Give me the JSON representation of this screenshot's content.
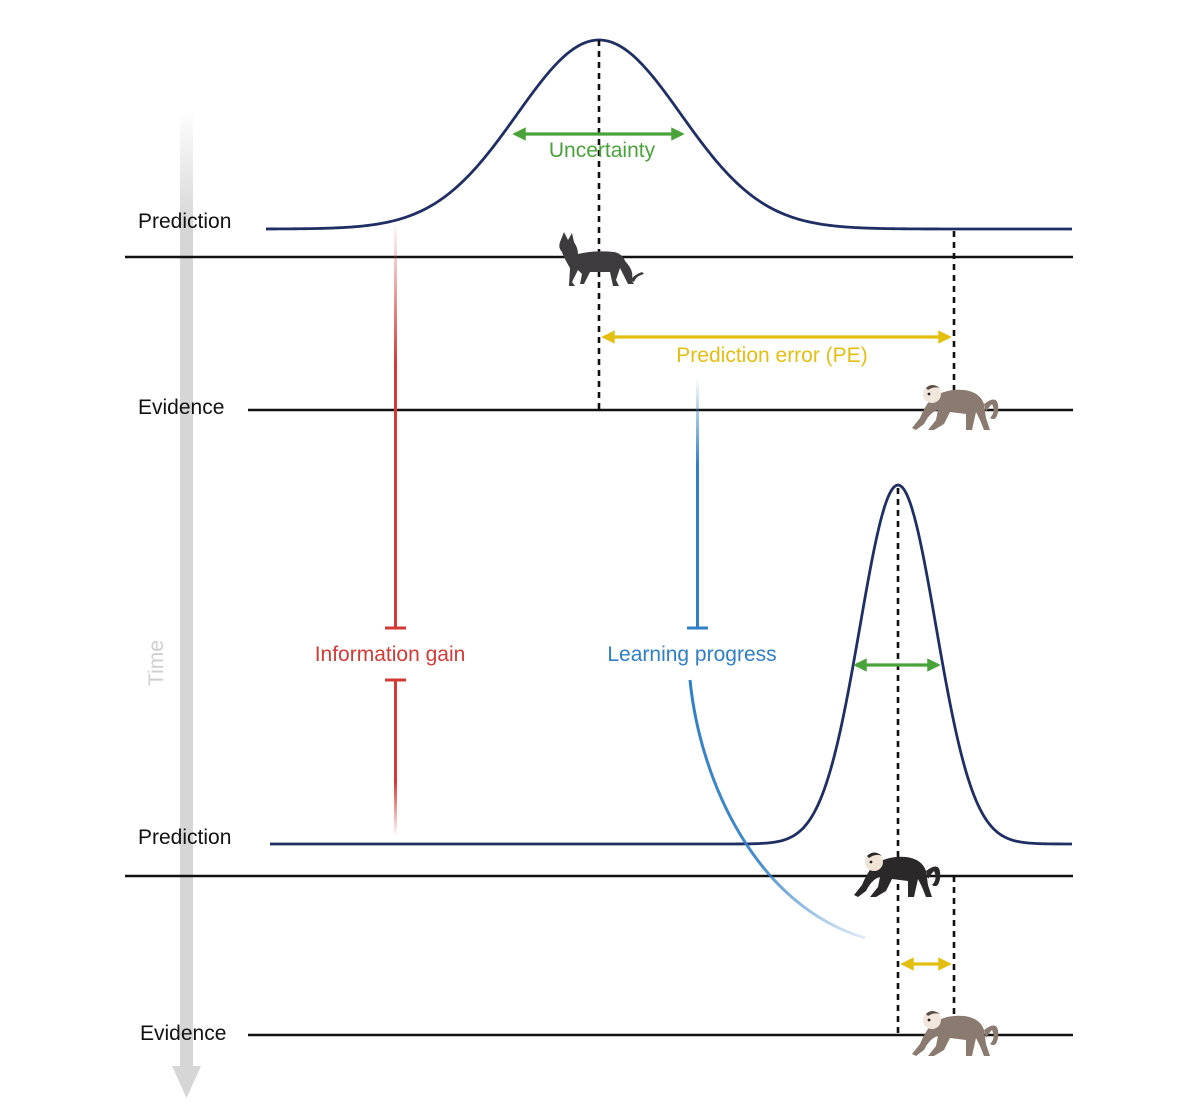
{
  "labels": {
    "prediction_top": "Prediction",
    "evidence_top": "Evidence",
    "prediction_bottom": "Prediction",
    "evidence_bottom": "Evidence",
    "uncertainty": "Uncertainty",
    "prediction_error": "Prediction error (PE)",
    "information_gain": "Information gain",
    "learning_progress": "Learning progress",
    "time": "Time"
  },
  "colors": {
    "curve": "#1f2f63",
    "axis": "#111111",
    "uncertainty": "#4aa33a",
    "prediction_error": "#e3bf12",
    "information_gain": "#d23a35",
    "learning_progress": "#2f7fc4",
    "time_arrow": "#d6d6d6",
    "cat": "#3d3b3e",
    "monkey_brown": "#8a7a70",
    "monkey_black": "#2a2828",
    "monkey_face": "#f1e6dc"
  },
  "icons": {
    "cat": "cat-icon",
    "capuchin_light": "capuchin-monkey-icon",
    "capuchin_dark": "black-capuchin-monkey-icon"
  }
}
